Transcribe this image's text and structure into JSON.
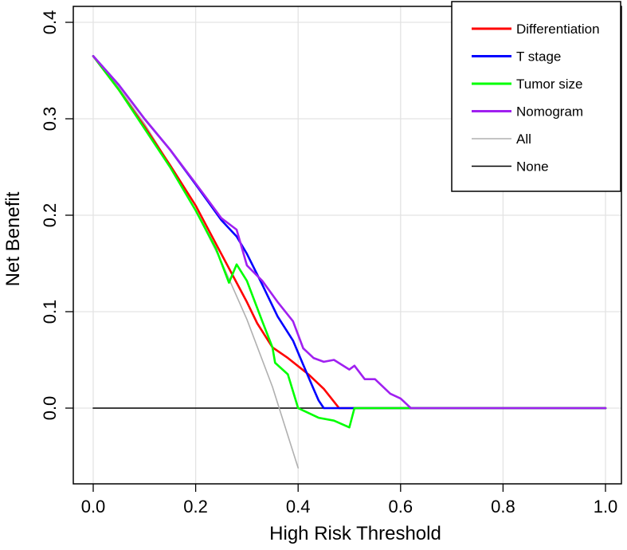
{
  "chart_data": {
    "type": "line",
    "title": "",
    "xlabel": "High Risk Threshold",
    "ylabel": "Net Benefit",
    "xlim": [
      0.0,
      1.0
    ],
    "ylim": [
      -0.06,
      0.4
    ],
    "xticks": [
      "0.0",
      "0.2",
      "0.4",
      "0.6",
      "0.8",
      "1.0"
    ],
    "yticks": [
      "0.0",
      "0.1",
      "0.2",
      "0.3",
      "0.4"
    ],
    "grid": true,
    "legend_position": "top-right",
    "series": [
      {
        "name": "Differentiation",
        "color": "#ff0000",
        "x": [
          0.0,
          0.05,
          0.1,
          0.15,
          0.2,
          0.24,
          0.27,
          0.3,
          0.32,
          0.35,
          0.38,
          0.42,
          0.45,
          0.48,
          0.5,
          1.0
        ],
        "y": [
          0.365,
          0.33,
          0.292,
          0.252,
          0.21,
          0.17,
          0.14,
          0.11,
          0.088,
          0.063,
          0.052,
          0.035,
          0.02,
          0.0,
          0.0,
          0.0
        ]
      },
      {
        "name": "T stage",
        "color": "#0000ff",
        "x": [
          0.0,
          0.05,
          0.1,
          0.15,
          0.2,
          0.25,
          0.28,
          0.3,
          0.33,
          0.36,
          0.39,
          0.41,
          0.43,
          0.44,
          0.45,
          1.0
        ],
        "y": [
          0.365,
          0.335,
          0.3,
          0.268,
          0.232,
          0.195,
          0.178,
          0.16,
          0.128,
          0.095,
          0.07,
          0.045,
          0.02,
          0.008,
          0.0,
          0.0
        ]
      },
      {
        "name": "Tumor size",
        "color": "#00ff00",
        "x": [
          0.0,
          0.05,
          0.1,
          0.15,
          0.2,
          0.24,
          0.265,
          0.28,
          0.3,
          0.33,
          0.35,
          0.355,
          0.38,
          0.4,
          0.44,
          0.47,
          0.5,
          0.51,
          0.52,
          0.6,
          1.0
        ],
        "y": [
          0.365,
          0.33,
          0.29,
          0.25,
          0.205,
          0.165,
          0.13,
          0.149,
          0.132,
          0.09,
          0.063,
          0.047,
          0.035,
          0.0,
          -0.01,
          -0.013,
          -0.02,
          0.0,
          0.0,
          0.0,
          0.0
        ]
      },
      {
        "name": "Nomogram",
        "color": "#a020f0",
        "x": [
          0.0,
          0.05,
          0.1,
          0.15,
          0.2,
          0.25,
          0.28,
          0.3,
          0.33,
          0.36,
          0.39,
          0.41,
          0.43,
          0.45,
          0.47,
          0.5,
          0.51,
          0.53,
          0.55,
          0.58,
          0.6,
          0.62,
          1.0
        ],
        "y": [
          0.365,
          0.335,
          0.3,
          0.268,
          0.233,
          0.197,
          0.185,
          0.148,
          0.132,
          0.11,
          0.09,
          0.062,
          0.052,
          0.048,
          0.05,
          0.04,
          0.044,
          0.03,
          0.03,
          0.015,
          0.01,
          0.0,
          0.0
        ]
      },
      {
        "name": "All",
        "color": "#b0b0b0",
        "x": [
          0.0,
          0.05,
          0.1,
          0.15,
          0.2,
          0.25,
          0.3,
          0.35,
          0.4
        ],
        "y": [
          0.365,
          0.332,
          0.295,
          0.252,
          0.205,
          0.152,
          0.092,
          0.022,
          -0.062
        ]
      },
      {
        "name": "None",
        "color": "#000000",
        "x": [
          0.0,
          1.0
        ],
        "y": [
          0.0,
          0.0
        ]
      }
    ]
  }
}
